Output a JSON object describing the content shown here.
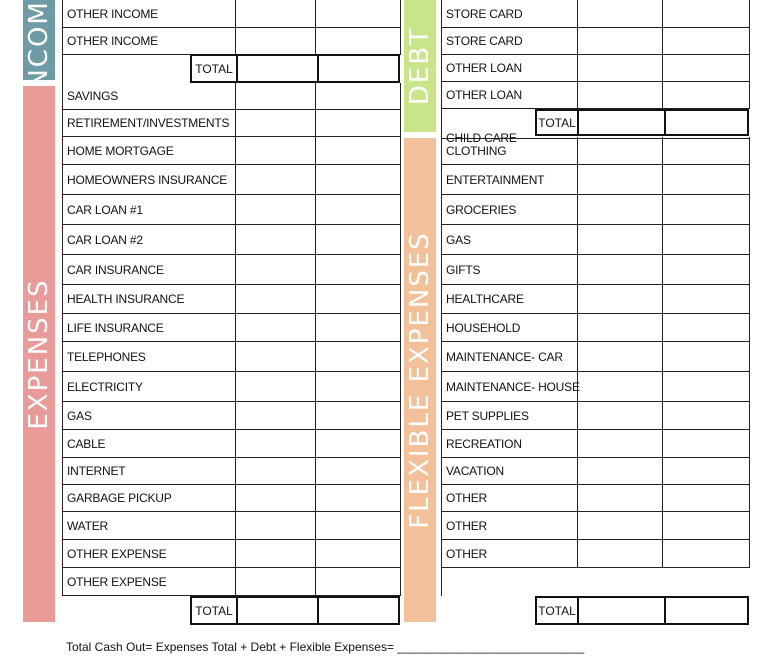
{
  "colors": {
    "income": "#6f9ba6",
    "expenses": "#e89b99",
    "debt": "#c9e58a",
    "flexible": "#f2c199"
  },
  "bands": {
    "income": "INCOME",
    "expenses": "EXPENSES",
    "debt": "DEBT",
    "flexible": "FLEXIBLE EXPENSES"
  },
  "income_rows": [
    "OTHER INCOME",
    "OTHER INCOME"
  ],
  "income_total_label": "TOTAL",
  "expense_rows": [
    "SAVINGS",
    "RETIREMENT/INVESTMENTS",
    "HOME MORTGAGE",
    "HOMEOWNERS INSURANCE",
    "CAR LOAN #1",
    "CAR LOAN #2",
    "CAR INSURANCE",
    "HEALTH INSURANCE",
    "LIFE INSURANCE",
    "TELEPHONES",
    "ELECTRICITY",
    "GAS",
    "CABLE",
    "INTERNET",
    "GARBAGE PICKUP",
    "WATER",
    "OTHER EXPENSE",
    "OTHER EXPENSE"
  ],
  "expense_total_label": "TOTAL",
  "debt_rows": [
    "STORE CARD",
    "STORE CARD",
    "OTHER LOAN",
    "OTHER LOAN"
  ],
  "debt_total_label": "TOTAL",
  "flexible_rows": [
    "CHILD CARE",
    "CLOTHING",
    "ENTERTAINMENT",
    "GROCERIES",
    "GAS",
    "GIFTS",
    "HEALTHCARE",
    "HOUSEHOLD",
    "MAINTENANCE- CAR",
    "MAINTENANCE- HOUSE",
    "PET SUPPLIES",
    "RECREATION",
    "VACATION",
    "OTHER",
    "OTHER",
    "OTHER"
  ],
  "flexible_total_label": "TOTAL",
  "footer": "Total Cash Out= Expenses Total + Debt + Flexible Expenses= ____________________________"
}
